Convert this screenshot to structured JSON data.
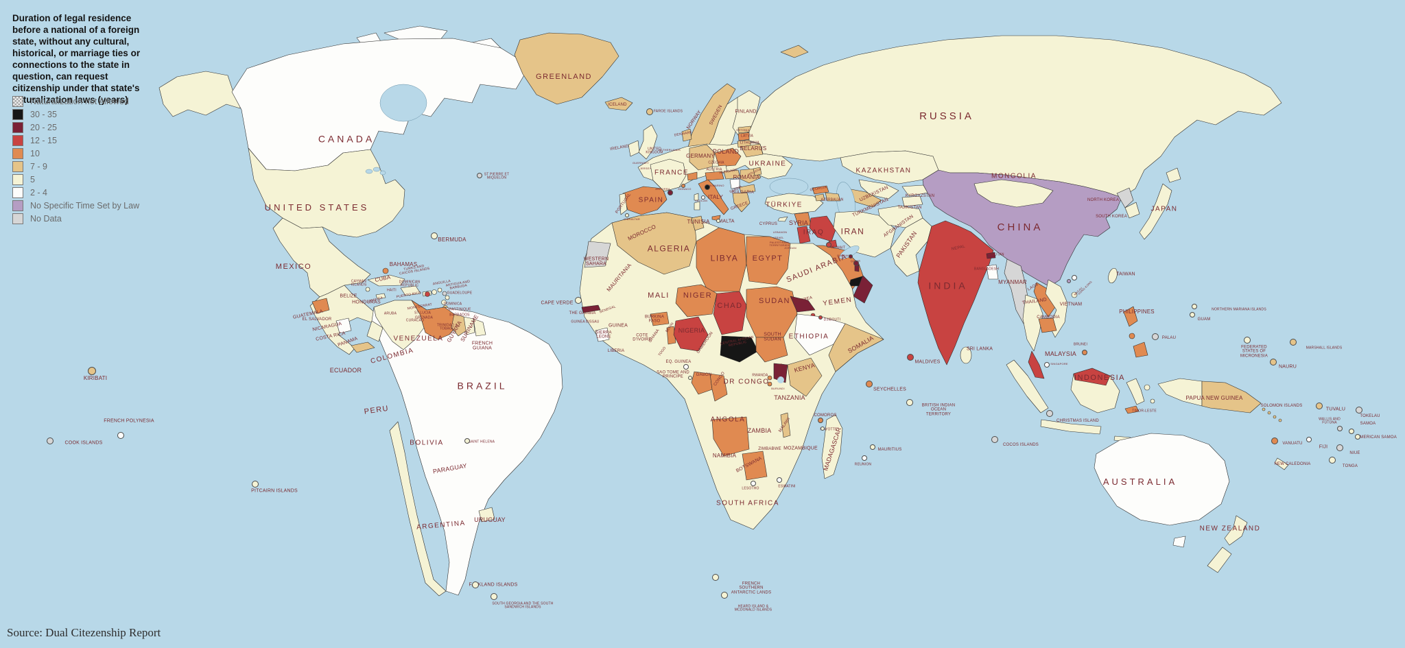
{
  "title": "Duration of legal residence before a national of a foreign state, without any cultural, historical, or marriage ties or connections to the state in question, can request citizenship under that state's naturalization laws (years)",
  "source": "Source: Dual Citezenship Report",
  "palette": {
    "ocean": "#b8d8e8",
    "na": "checker",
    "30-35": "#161616",
    "20-25": "#7a2136",
    "12-15": "#c84341",
    "10": "#e08a51",
    "7-9": "#e5c489",
    "5": "#f5f3d5",
    "2-4": "#fdfdfb",
    "law": "#b59dc3",
    "nd": "#d6d6d6",
    "label": "#7b2a30"
  },
  "legend": [
    {
      "key": "na",
      "label": "Naturalization not Allowed"
    },
    {
      "key": "30-35",
      "label": "30 - 35"
    },
    {
      "key": "20-25",
      "label": "20 - 25"
    },
    {
      "key": "12-15",
      "label": "12 - 15"
    },
    {
      "key": "10",
      "label": "10"
    },
    {
      "key": "7-9",
      "label": "7 - 9"
    },
    {
      "key": "5",
      "label": "5"
    },
    {
      "key": "2-4",
      "label": "2 - 4"
    },
    {
      "key": "law",
      "label": "No Specific Time Set by Law"
    },
    {
      "key": "nd",
      "label": "No Data"
    }
  ],
  "countries": [
    {
      "n": "CANADA",
      "cat": "2-4"
    },
    {
      "n": "UNITED STATES",
      "cat": "5"
    },
    {
      "n": "MEXICO",
      "cat": "5"
    },
    {
      "n": "GREENLAND",
      "cat": "7-9"
    },
    {
      "n": "BERMUDA",
      "cat": "5"
    },
    {
      "n": "ST PIERRE ET MIQUELON",
      "cat": "nd"
    },
    {
      "n": "BAHAMAS",
      "cat": "5"
    },
    {
      "n": "CUBA",
      "cat": "5"
    },
    {
      "n": "TURKS AND CAICOS ISLANDS",
      "cat": "10"
    },
    {
      "n": "CAYMAN ISLANDS",
      "cat": "5"
    },
    {
      "n": "JAMAICA",
      "cat": "5"
    },
    {
      "n": "HAITI",
      "cat": "5"
    },
    {
      "n": "DOMINICAN REPUBLIC",
      "cat": "5"
    },
    {
      "n": "PUERTO RICO",
      "cat": "5"
    },
    {
      "n": "ANGUILLA",
      "cat": "5"
    },
    {
      "n": "ANTIGUA AND BARBUDA",
      "cat": "5"
    },
    {
      "n": "GUADELOUPE",
      "cat": "5"
    },
    {
      "n": "MONTSERRAT",
      "cat": "5"
    },
    {
      "n": "DOMINICA",
      "cat": "5"
    },
    {
      "n": "MARTINIQUE",
      "cat": "5"
    },
    {
      "n": "ST LUCIA",
      "cat": "5"
    },
    {
      "n": "BARBADOS",
      "cat": "5"
    },
    {
      "n": "GRENADA",
      "cat": "5"
    },
    {
      "n": "TRINIDAD & TOBAGO",
      "cat": "5"
    },
    {
      "n": "ARUBA",
      "cat": "nd"
    },
    {
      "n": "CURACAO",
      "cat": "nd"
    },
    {
      "n": "BELIZE",
      "cat": "5"
    },
    {
      "n": "GUATEMALA",
      "cat": "10"
    },
    {
      "n": "EL SALVADOR",
      "cat": "5"
    },
    {
      "n": "HONDURAS",
      "cat": "5"
    },
    {
      "n": "NICARAGUA",
      "cat": "2-4"
    },
    {
      "n": "COSTA RICA",
      "cat": "5"
    },
    {
      "n": "PANAMA",
      "cat": "7-9"
    },
    {
      "n": "COLOMBIA",
      "cat": "5"
    },
    {
      "n": "VENEZUELA",
      "cat": "10"
    },
    {
      "n": "GUYANA",
      "cat": "7-9"
    },
    {
      "n": "SURINAME",
      "cat": "5"
    },
    {
      "n": "FRENCH GUIANA",
      "cat": "5"
    },
    {
      "n": "ECUADOR",
      "cat": "5"
    },
    {
      "n": "PERU",
      "cat": "2-4"
    },
    {
      "n": "BRAZIL",
      "cat": "2-4"
    },
    {
      "n": "BOLIVIA",
      "cat": "2-4"
    },
    {
      "n": "PARAGUAY",
      "cat": "2-4"
    },
    {
      "n": "URUGUAY",
      "cat": "5"
    },
    {
      "n": "ARGENTINA",
      "cat": "2-4"
    },
    {
      "n": "FALKLAND ISLANDS",
      "cat": "5"
    },
    {
      "n": "SOUTH GEORGIA AND THE SOUTH SANDWICH ISLANDS",
      "cat": "5"
    },
    {
      "n": "PITCAIRN ISLANDS",
      "cat": "5"
    },
    {
      "n": "KIRIBATI",
      "cat": "7-9"
    },
    {
      "n": "FRENCH POLYNESIA",
      "cat": "2-4"
    },
    {
      "n": "COOK ISLANDS",
      "cat": "nd"
    },
    {
      "n": "ICELAND",
      "cat": "7-9"
    },
    {
      "n": "FAROE ISLANDS",
      "cat": "7-9"
    },
    {
      "n": "IRELAND",
      "cat": "5"
    },
    {
      "n": "UNITED KINGDOM",
      "cat": "5"
    },
    {
      "n": "GUERNSEY",
      "cat": "5"
    },
    {
      "n": "JERSEY",
      "cat": "5"
    },
    {
      "n": "NORWAY",
      "cat": "7-9"
    },
    {
      "n": "SWEDEN",
      "cat": "5"
    },
    {
      "n": "FINLAND",
      "cat": "5"
    },
    {
      "n": "DENMARK",
      "cat": "7-9"
    },
    {
      "n": "NETHERLANDS",
      "cat": "5"
    },
    {
      "n": "GERMANY",
      "cat": "7-9"
    },
    {
      "n": "POLAND",
      "cat": "10"
    },
    {
      "n": "CZECHIA",
      "cat": "5"
    },
    {
      "n": "AUSTRIA",
      "cat": "10"
    },
    {
      "n": "FRANCE",
      "cat": "5"
    },
    {
      "n": "SPAIN",
      "cat": "10"
    },
    {
      "n": "PORTUGAL",
      "cat": "5"
    },
    {
      "n": "GIBRALTAR",
      "cat": "5"
    },
    {
      "n": "ANDORRA",
      "cat": "20-25"
    },
    {
      "n": "MONACO",
      "cat": "10"
    },
    {
      "n": "SAN MARINO",
      "cat": "30-35"
    },
    {
      "n": "VATICAN",
      "cat": "2-4"
    },
    {
      "n": "ITALY",
      "cat": "10"
    },
    {
      "n": "MALTA",
      "cat": "5"
    },
    {
      "n": "ESTONIA",
      "cat": "7-9"
    },
    {
      "n": "LATVIA",
      "cat": "10"
    },
    {
      "n": "LITHUANIA",
      "cat": "7-9"
    },
    {
      "n": "BELARUS",
      "cat": "7-9"
    },
    {
      "n": "UKRAINE",
      "cat": "5"
    },
    {
      "n": "MOLDOVA",
      "cat": "7-9"
    },
    {
      "n": "HUNGARY",
      "cat": "7-9"
    },
    {
      "n": "ROMANIA",
      "cat": "7-9"
    },
    {
      "n": "SERBIA",
      "cat": "2-4"
    },
    {
      "n": "BULGARIA",
      "cat": "7-9"
    },
    {
      "n": "GREECE",
      "cat": "7-9"
    },
    {
      "n": "TÜRKIYE",
      "cat": "5"
    },
    {
      "n": "CYPRUS",
      "cat": "5"
    },
    {
      "n": "GEORGIA",
      "cat": "10"
    },
    {
      "n": "AZERBAIJAN",
      "cat": "7-9"
    },
    {
      "n": "RUSSIA",
      "cat": "5"
    },
    {
      "n": "KAZAKHSTAN",
      "cat": "5"
    },
    {
      "n": "UZBEKISTAN",
      "cat": "5"
    },
    {
      "n": "TURKMENISTAN",
      "cat": "7-9"
    },
    {
      "n": "KYRGYZSTAN",
      "cat": "5"
    },
    {
      "n": "TAJIKISTAN",
      "cat": "5"
    },
    {
      "n": "AFGHANISTAN",
      "cat": "5"
    },
    {
      "n": "PAKISTAN",
      "cat": "5"
    },
    {
      "n": "IRAN",
      "cat": "5"
    },
    {
      "n": "IRAQ",
      "cat": "12-15"
    },
    {
      "n": "SYRIA",
      "cat": "10"
    },
    {
      "n": "LEBANON",
      "cat": "5"
    },
    {
      "n": "ISRAEL",
      "cat": "5"
    },
    {
      "n": "PALESTINIAN TERRITORIES",
      "cat": "5"
    },
    {
      "n": "JORDAN",
      "cat": "12-15"
    },
    {
      "n": "KUWAIT",
      "cat": "12-15"
    },
    {
      "n": "BAHRAIN",
      "cat": "20-25"
    },
    {
      "n": "QATAR",
      "cat": "20-25"
    },
    {
      "n": "SAUDI ARABIA",
      "cat": "10"
    },
    {
      "n": "YEMEN",
      "cat": "5"
    },
    {
      "n": "MOROCCO",
      "cat": "5"
    },
    {
      "n": "WESTERN SAHARA",
      "cat": "nd"
    },
    {
      "n": "ALGERIA",
      "cat": "7-9"
    },
    {
      "n": "TUNISIA",
      "cat": "7-9"
    },
    {
      "n": "LIBYA",
      "cat": "10"
    },
    {
      "n": "EGYPT",
      "cat": "10"
    },
    {
      "n": "MAURITANIA",
      "cat": "5"
    },
    {
      "n": "MALI",
      "cat": "5"
    },
    {
      "n": "NIGER",
      "cat": "10"
    },
    {
      "n": "CHAD",
      "cat": "12-15"
    },
    {
      "n": "SUDAN",
      "cat": "10"
    },
    {
      "n": "ERITREA",
      "cat": "20-25"
    },
    {
      "n": "DJIBOUTI",
      "cat": "12-15"
    },
    {
      "n": "ETHIOPIA",
      "cat": "2-4"
    },
    {
      "n": "SOMALIA",
      "cat": "7-9"
    },
    {
      "n": "CAPE VERDE",
      "cat": "5"
    },
    {
      "n": "SENEGAL",
      "cat": "20-25"
    },
    {
      "n": "THE GAMBIA",
      "cat": "7-9"
    },
    {
      "n": "GUINEA BISSAU",
      "cat": "10"
    },
    {
      "n": "GUINEA",
      "cat": "5"
    },
    {
      "n": "SIERRA LEONE",
      "cat": "2-4"
    },
    {
      "n": "LIBERIA",
      "cat": "5"
    },
    {
      "n": "COTE D'IVOIRE",
      "cat": "5"
    },
    {
      "n": "BURKINA FASO",
      "cat": "10"
    },
    {
      "n": "GHANA",
      "cat": "5"
    },
    {
      "n": "TOGO",
      "cat": "5"
    },
    {
      "n": "BENIN",
      "cat": "10"
    },
    {
      "n": "NIGERIA",
      "cat": "12-15"
    },
    {
      "n": "CAMEROON",
      "cat": "5"
    },
    {
      "n": "CENTRAL AFRICAN REPUBLIC",
      "cat": "30-35"
    },
    {
      "n": "SOUTH SUDAN",
      "cat": "10"
    },
    {
      "n": "UGANDA",
      "cat": "20-25"
    },
    {
      "n": "KENYA",
      "cat": "7-9"
    },
    {
      "n": "EQ. GUINEA",
      "cat": "2-4"
    },
    {
      "n": "SAO TOME AND PRINCIPE",
      "cat": "5"
    },
    {
      "n": "GABON",
      "cat": "10"
    },
    {
      "n": "CONGO",
      "cat": "10"
    },
    {
      "n": "DR CONGO",
      "cat": "5"
    },
    {
      "n": "RWANDA",
      "cat": "10"
    },
    {
      "n": "BURUNDI",
      "cat": "10"
    },
    {
      "n": "TANZANIA",
      "cat": "5"
    },
    {
      "n": "ANGOLA",
      "cat": "10"
    },
    {
      "n": "ZAMBIA",
      "cat": "5"
    },
    {
      "n": "MALAWI",
      "cat": "7-9"
    },
    {
      "n": "MOZAMBIQUE",
      "cat": "5"
    },
    {
      "n": "ZIMBABWE",
      "cat": "5"
    },
    {
      "n": "BOTSWANA",
      "cat": "10"
    },
    {
      "n": "NAMIBIA",
      "cat": "5"
    },
    {
      "n": "SOUTH AFRICA",
      "cat": "5"
    },
    {
      "n": "LESOTHO",
      "cat": "2-4"
    },
    {
      "n": "ESWATINI",
      "cat": "2-4"
    },
    {
      "n": "MADAGASCAR",
      "cat": "5"
    },
    {
      "n": "COMOROS",
      "cat": "10"
    },
    {
      "n": "MAYOTTE",
      "cat": "5"
    },
    {
      "n": "SEYCHELLES",
      "cat": "10"
    },
    {
      "n": "MAURITIUS",
      "cat": "5"
    },
    {
      "n": "REUNION",
      "cat": "2-4"
    },
    {
      "n": "SAINT HELENA",
      "cat": "5"
    },
    {
      "n": "CHINA",
      "cat": "law"
    },
    {
      "n": "MONGOLIA",
      "cat": "5"
    },
    {
      "n": "NORTH KOREA",
      "cat": "nd"
    },
    {
      "n": "SOUTH KOREA",
      "cat": "5"
    },
    {
      "n": "JAPAN",
      "cat": "5"
    },
    {
      "n": "TAIWAN",
      "cat": "5"
    },
    {
      "n": "INDIA",
      "cat": "12-15"
    },
    {
      "n": "NEPAL",
      "cat": "12-15"
    },
    {
      "n": "BHUTAN",
      "cat": "20-25"
    },
    {
      "n": "BANGLADESH",
      "cat": "2-4"
    },
    {
      "n": "SRI LANKA",
      "cat": "5"
    },
    {
      "n": "MALDIVES",
      "cat": "12-15"
    },
    {
      "n": "MYANMAR",
      "cat": "nd"
    },
    {
      "n": "THAILAND",
      "cat": "5"
    },
    {
      "n": "LAOS",
      "cat": "10"
    },
    {
      "n": "VIETNAM",
      "cat": "5"
    },
    {
      "n": "CAMBODIA",
      "cat": "10"
    },
    {
      "n": "MALAYSIA",
      "cat": "12-15"
    },
    {
      "n": "SINGAPORE",
      "cat": "2-4"
    },
    {
      "n": "BRUNEI",
      "cat": "10"
    },
    {
      "n": "PHILIPPINES",
      "cat": "10"
    },
    {
      "n": "INDONESIA",
      "cat": "5"
    },
    {
      "n": "TIMOR-LESTE",
      "cat": "10"
    },
    {
      "n": "HONG KONG",
      "cat": "2-4"
    },
    {
      "n": "MACAU",
      "cat": "law"
    },
    {
      "n": "BRITISH INDIAN OCEAN TERRITORY",
      "cat": "5"
    },
    {
      "n": "CHRISTMAS ISLAND",
      "cat": "nd"
    },
    {
      "n": "COCOS ISLANDS",
      "cat": "nd"
    },
    {
      "n": "AUSTRALIA",
      "cat": "2-4"
    },
    {
      "n": "NEW ZEALAND",
      "cat": "5"
    },
    {
      "n": "PAPUA NEW GUINEA",
      "cat": "7-9"
    },
    {
      "n": "SOLOMON ISLANDS",
      "cat": "5"
    },
    {
      "n": "VANUATU",
      "cat": "10"
    },
    {
      "n": "NEW CALEDONIA",
      "cat": "5"
    },
    {
      "n": "FIJI",
      "cat": "2-4"
    },
    {
      "n": "TUVALU",
      "cat": "7-9"
    },
    {
      "n": "TOKELAU",
      "cat": "nd"
    },
    {
      "n": "WALLIS AND FUTUNA",
      "cat": "nd"
    },
    {
      "n": "SAMOA",
      "cat": "5"
    },
    {
      "n": "AMERICAN SAMOA",
      "cat": "5"
    },
    {
      "n": "NIUE",
      "cat": "nd"
    },
    {
      "n": "TONGA",
      "cat": "5"
    },
    {
      "n": "NAURU",
      "cat": "7-9"
    },
    {
      "n": "MARSHALL ISLANDS",
      "cat": "7-9"
    },
    {
      "n": "FEDERATED STATES OF MICRONESIA",
      "cat": "5"
    },
    {
      "n": "PALAU",
      "cat": "nd"
    },
    {
      "n": "NORTHERN MARIANA ISLANDS",
      "cat": "5"
    },
    {
      "n": "GUAM",
      "cat": "5"
    },
    {
      "n": "FRENCH SOUTHERN ANTARCTIC LANDS",
      "cat": "5"
    },
    {
      "n": "HEARD ISLAND & MCDONALD ISLANDS",
      "cat": "5"
    }
  ]
}
